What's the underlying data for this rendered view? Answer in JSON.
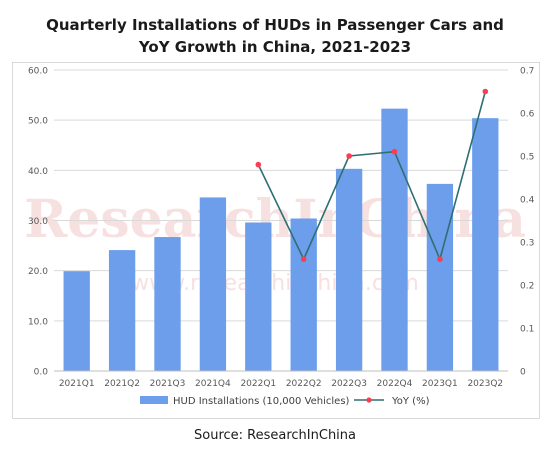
{
  "title_line1": "Quarterly Installations of HUDs in Passenger Cars and",
  "title_line2": "YoY Growth in China, 2021-2023",
  "source": "Source:  ResearchInChina",
  "watermark": {
    "brand": "ResearchInChina",
    "url": "www.researchinchina.com"
  },
  "colors": {
    "bar": "#6d9eeb",
    "line": "#2e6f73",
    "marker": "#ff3b4e",
    "grid": "#d9d9d9",
    "axis_text": "#595959",
    "watermark": "#f2c7c7"
  },
  "chart_data": {
    "type": "bar+line",
    "categories": [
      "2021Q1",
      "2021Q2",
      "2021Q3",
      "2021Q4",
      "2022Q1",
      "2022Q2",
      "2022Q3",
      "2022Q4",
      "2023Q1",
      "2023Q2"
    ],
    "series": [
      {
        "name": "HUD Installations (10,000 Vehicles)",
        "type": "bar",
        "axis": "left",
        "values": [
          19.9,
          24.1,
          26.7,
          34.6,
          29.6,
          30.4,
          40.3,
          52.3,
          37.3,
          50.4
        ]
      },
      {
        "name": "YoY (%)",
        "type": "line",
        "axis": "right",
        "values": [
          null,
          null,
          null,
          null,
          0.48,
          0.26,
          0.5,
          0.51,
          0.26,
          0.65
        ]
      }
    ],
    "y_left": {
      "ylim": [
        0,
        60
      ],
      "ticks": [
        "0.0",
        "10.0",
        "20.0",
        "30.0",
        "40.0",
        "50.0",
        "60.0"
      ]
    },
    "y_right": {
      "ylim": [
        0,
        0.7
      ],
      "ticks": [
        "0",
        "0.1",
        "0.2",
        "0.3",
        "0.4",
        "0.5",
        "0.6",
        "0.7"
      ]
    },
    "grid": true,
    "legend": "bottom"
  }
}
